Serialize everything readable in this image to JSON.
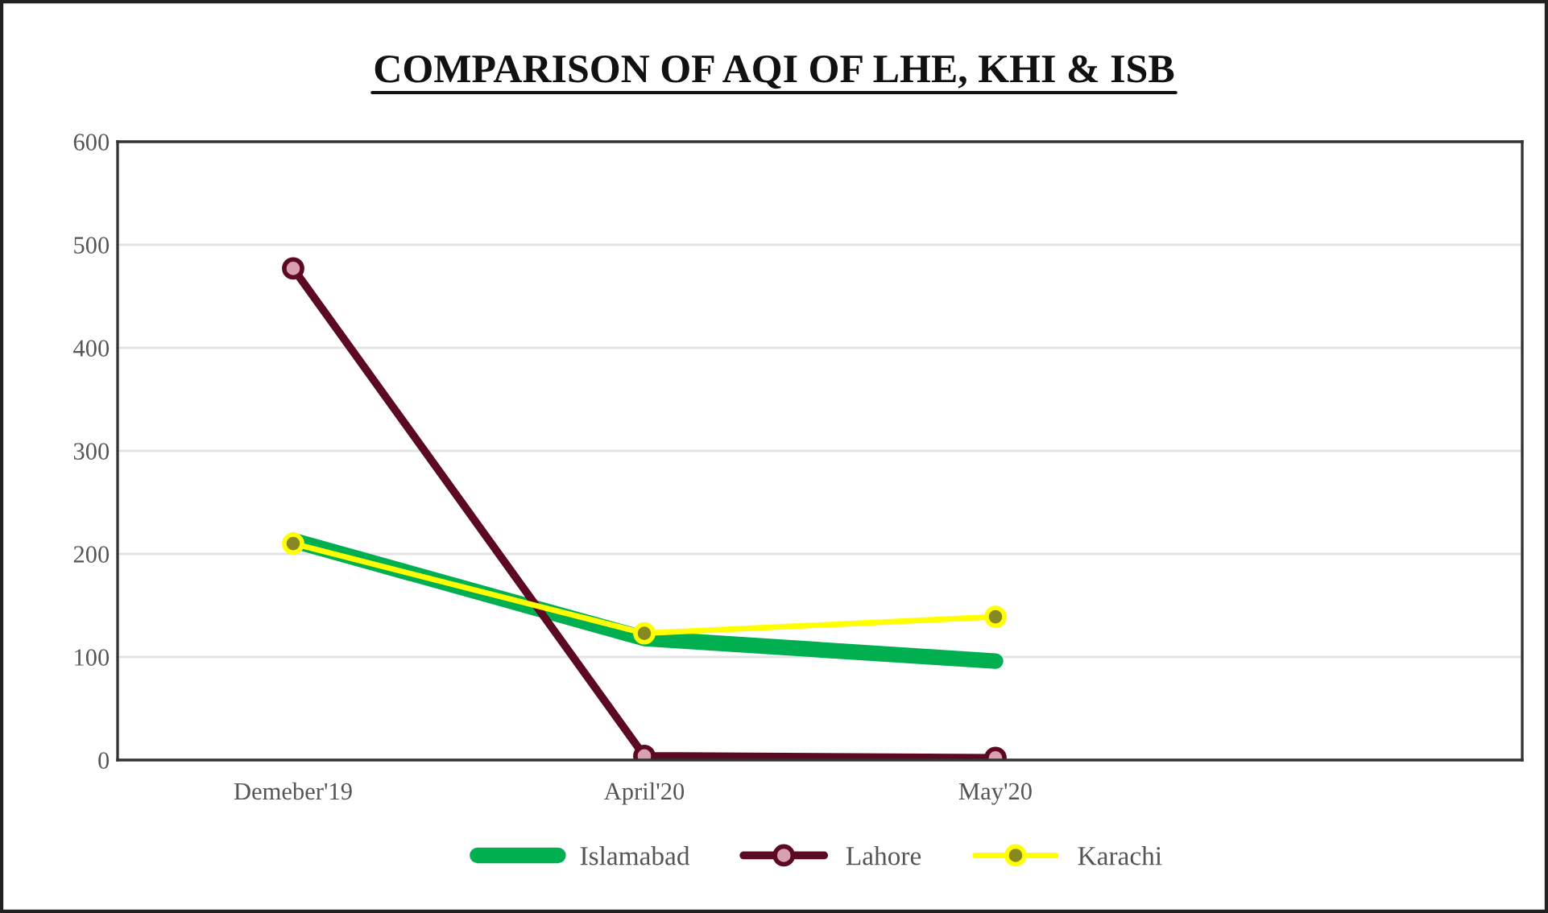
{
  "chart_data": {
    "type": "line",
    "title": "COMPARISON OF AQI OF LHE, KHI & ISB",
    "categories": [
      "Demeber'19",
      "April'20",
      "May'20",
      null
    ],
    "series": [
      {
        "name": "Islamabad",
        "color": "#00b050",
        "values": [
          213,
          118,
          96,
          null
        ],
        "marker": "none"
      },
      {
        "name": "Lahore",
        "color": "#5c0a22",
        "values": [
          477,
          4,
          2,
          null
        ],
        "marker": "circle"
      },
      {
        "name": "Karachi",
        "color": "#ffff00",
        "values": [
          210,
          123,
          139,
          null
        ],
        "marker": "circle"
      }
    ],
    "ylim": [
      0,
      600
    ],
    "yticks": [
      0,
      100,
      200,
      300,
      400,
      500,
      600
    ],
    "grid": "y",
    "legend": "bottom",
    "line_style": "solid"
  }
}
